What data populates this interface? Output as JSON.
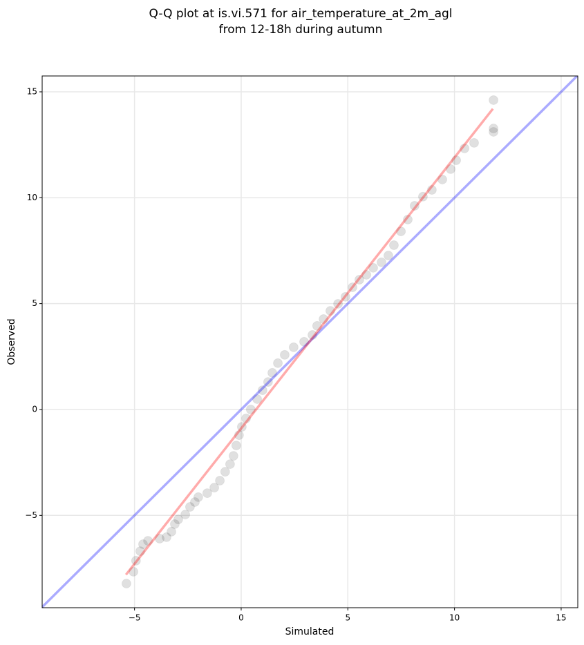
{
  "chart_data": {
    "type": "scatter",
    "title": [
      "Q-Q plot at is.vi.571 for air_temperature_at_2m_agl",
      "from 12-18h during autumn"
    ],
    "xlabel": "Simulated",
    "ylabel": "Observed",
    "xlim": [
      -9.33,
      15.78
    ],
    "ylim": [
      -9.36,
      15.75
    ],
    "xticks": [
      {
        "value": -5,
        "label": "−5"
      },
      0,
      5,
      10,
      15
    ],
    "yticks": [
      {
        "value": -5,
        "label": "−5"
      },
      0,
      5,
      10,
      15
    ],
    "grid": true,
    "points": {
      "color": "#000000",
      "x": [
        -5.38,
        -5.05,
        -4.93,
        -4.73,
        -4.6,
        -4.37,
        -3.82,
        -3.5,
        -3.27,
        -3.11,
        -2.95,
        -2.62,
        -2.4,
        -2.17,
        -2.01,
        -1.59,
        -1.26,
        -1.0,
        -0.75,
        -0.52,
        -0.36,
        -0.23,
        -0.1,
        0.03,
        0.23,
        0.45,
        0.75,
        1.0,
        1.26,
        1.46,
        1.72,
        2.04,
        2.46,
        2.95,
        3.34,
        3.56,
        3.86,
        4.18,
        4.54,
        4.89,
        5.22,
        5.54,
        5.87,
        6.19,
        6.58,
        6.9,
        7.16,
        7.49,
        7.81,
        8.13,
        8.52,
        8.94,
        9.43,
        9.82,
        10.08,
        10.47,
        10.92,
        11.83,
        11.83,
        11.83
      ],
      "y": [
        -8.22,
        -7.66,
        -7.14,
        -6.69,
        -6.36,
        -6.2,
        -6.1,
        -6.03,
        -5.77,
        -5.41,
        -5.19,
        -4.96,
        -4.6,
        -4.37,
        -4.14,
        -3.95,
        -3.69,
        -3.36,
        -2.94,
        -2.58,
        -2.19,
        -1.7,
        -1.21,
        -0.82,
        -0.42,
        0,
        0.49,
        0.91,
        1.3,
        1.73,
        2.19,
        2.58,
        2.94,
        3.2,
        3.52,
        3.95,
        4.27,
        4.66,
        4.99,
        5.32,
        5.77,
        6.13,
        6.36,
        6.69,
        6.95,
        7.27,
        7.76,
        8.41,
        8.97,
        9.62,
        10.05,
        10.37,
        10.86,
        11.35,
        11.77,
        12.33,
        12.59,
        13.11,
        13.27,
        14.61
      ]
    },
    "lines": [
      {
        "color": "#0000ff",
        "x": [
          -9.33,
          15.78
        ],
        "y": [
          -9.33,
          15.78
        ]
      },
      {
        "color": "#ff0000",
        "x": [
          -5.4,
          11.8
        ],
        "y": [
          -7.8,
          14.2
        ]
      }
    ]
  }
}
